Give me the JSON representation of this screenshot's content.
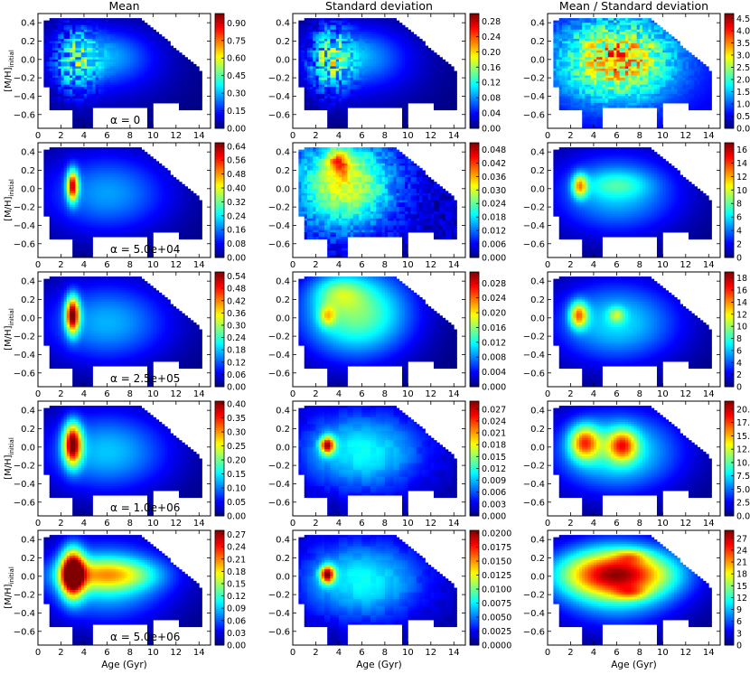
{
  "chart_data": {
    "type": "heatmap",
    "column_titles": [
      "Mean",
      "Standard deviation",
      "Mean / Standard deviation"
    ],
    "xlabel": "Age (Gyr)",
    "ylabel": "[M/H]",
    "ylabel_subscript": "initial",
    "xlim": [
      0,
      15
    ],
    "ylim": [
      -0.75,
      0.5
    ],
    "x_ticks": [
      0,
      2,
      4,
      6,
      8,
      10,
      12,
      14
    ],
    "y_ticks": [
      0.4,
      0.2,
      0.0,
      -0.2,
      -0.4,
      -0.6
    ],
    "x_tick_labels": [
      "0",
      "2",
      "4",
      "6",
      "8",
      "10",
      "12",
      "14"
    ],
    "y_tick_labels": [
      "0.4",
      "0.2",
      "0.0",
      "−0.2",
      "−0.4",
      "−0.6"
    ],
    "colormap": "jet",
    "rows": [
      {
        "alpha_label": "α = 0",
        "panels": [
          {
            "column": "Mean",
            "colorbar_ticks": [
              "0.00",
              "0.15",
              "0.30",
              "0.45",
              "0.60",
              "0.75",
              "0.90"
            ],
            "range": [
              0,
              0.98
            ]
          },
          {
            "column": "Standard deviation",
            "colorbar_ticks": [
              "0.00",
              "0.04",
              "0.08",
              "0.12",
              "0.16",
              "0.20",
              "0.24",
              "0.28"
            ],
            "range": [
              0,
              0.3
            ]
          },
          {
            "column": "Mean / Standard deviation",
            "colorbar_ticks": [
              "0.0",
              "0.5",
              "1.0",
              "1.5",
              "2.0",
              "2.5",
              "3.0",
              "3.5",
              "4.0",
              "4.5"
            ],
            "range": [
              0,
              4.7
            ]
          }
        ]
      },
      {
        "alpha_label": "α = 5.0e+04",
        "panels": [
          {
            "column": "Mean",
            "colorbar_ticks": [
              "0.00",
              "0.08",
              "0.16",
              "0.24",
              "0.32",
              "0.40",
              "0.48",
              "0.56",
              "0.64"
            ],
            "range": [
              0,
              0.66
            ]
          },
          {
            "column": "Standard deviation",
            "colorbar_ticks": [
              "0.000",
              "0.006",
              "0.012",
              "0.018",
              "0.024",
              "0.030",
              "0.036",
              "0.042",
              "0.048"
            ],
            "range": [
              0,
              0.051
            ]
          },
          {
            "column": "Mean / Standard deviation",
            "colorbar_ticks": [
              "0",
              "2",
              "4",
              "6",
              "8",
              "10",
              "12",
              "14",
              "16"
            ],
            "range": [
              0,
              17
            ]
          }
        ]
      },
      {
        "alpha_label": "α = 2.5e+05",
        "panels": [
          {
            "column": "Mean",
            "colorbar_ticks": [
              "0.00",
              "0.06",
              "0.12",
              "0.18",
              "0.24",
              "0.30",
              "0.36",
              "0.42",
              "0.48",
              "0.54"
            ],
            "range": [
              0,
              0.56
            ]
          },
          {
            "column": "Standard deviation",
            "colorbar_ticks": [
              "0.000",
              "0.004",
              "0.008",
              "0.012",
              "0.016",
              "0.020",
              "0.024",
              "0.028"
            ],
            "range": [
              0,
              0.031
            ]
          },
          {
            "column": "Mean / Standard deviation",
            "colorbar_ticks": [
              "0",
              "2",
              "4",
              "6",
              "8",
              "10",
              "12",
              "14",
              "16",
              "18"
            ],
            "range": [
              0,
              19
            ]
          }
        ]
      },
      {
        "alpha_label": "α = 1.0e+06",
        "panels": [
          {
            "column": "Mean",
            "colorbar_ticks": [
              "0.00",
              "0.05",
              "0.10",
              "0.15",
              "0.20",
              "0.25",
              "0.30",
              "0.35",
              "0.40"
            ],
            "range": [
              0,
              0.41
            ]
          },
          {
            "column": "Standard deviation",
            "colorbar_ticks": [
              "0.000",
              "0.003",
              "0.006",
              "0.009",
              "0.012",
              "0.015",
              "0.018",
              "0.021",
              "0.024",
              "0.027"
            ],
            "range": [
              0,
              0.029
            ]
          },
          {
            "column": "Mean / Standard deviation",
            "colorbar_ticks": [
              "0.0",
              "2.5",
              "5.0",
              "7.5",
              "10.0",
              "12.5",
              "15.0",
              "17.5",
              "20.0"
            ],
            "range": [
              0,
              21.5
            ]
          }
        ]
      },
      {
        "alpha_label": "α = 5.0e+06",
        "panels": [
          {
            "column": "Mean",
            "colorbar_ticks": [
              "0.00",
              "0.03",
              "0.06",
              "0.09",
              "0.12",
              "0.15",
              "0.18",
              "0.21",
              "0.24",
              "0.27"
            ],
            "range": [
              0,
              0.28
            ]
          },
          {
            "column": "Standard deviation",
            "colorbar_ticks": [
              "0.0000",
              "0.0025",
              "0.0050",
              "0.0075",
              "0.0100",
              "0.0125",
              "0.0150",
              "0.0175",
              "0.0200"
            ],
            "range": [
              0,
              0.0205
            ]
          },
          {
            "column": "Mean / Standard deviation",
            "colorbar_ticks": [
              "0",
              "3",
              "6",
              "9",
              "12",
              "15",
              "18",
              "21",
              "24",
              "27"
            ],
            "range": [
              0,
              29
            ]
          }
        ]
      }
    ]
  }
}
